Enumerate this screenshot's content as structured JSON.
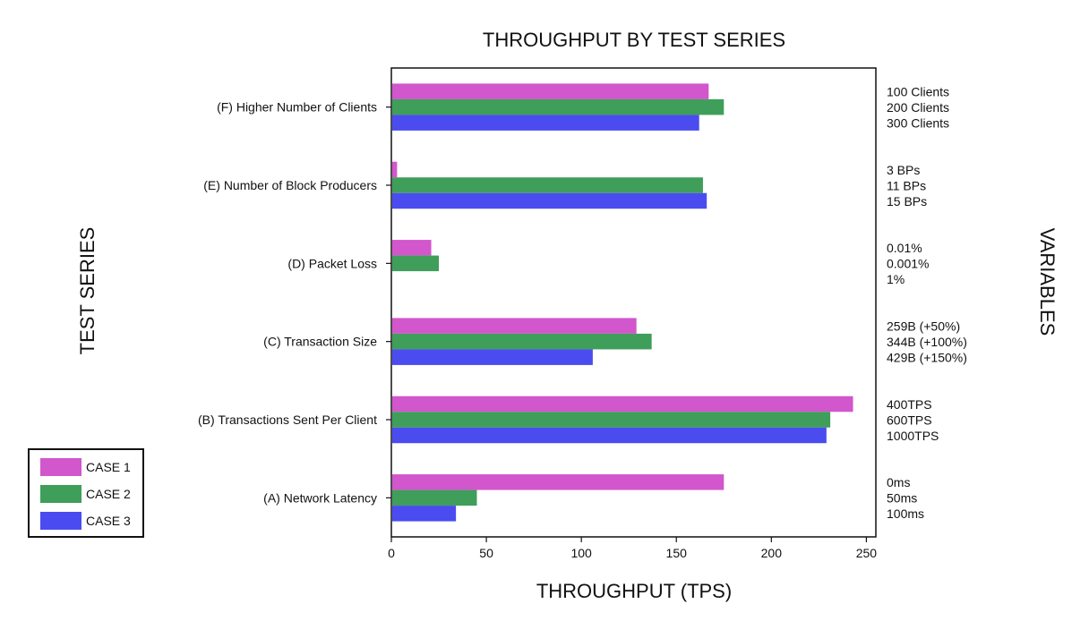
{
  "chart_data": {
    "type": "bar",
    "orientation": "horizontal",
    "title": "THROUGHPUT BY TEST SERIES",
    "xlabel": "THROUGHPUT (TPS)",
    "ylabel": "TEST SERIES",
    "right_label": "VARIABLES",
    "xlim": [
      0,
      255
    ],
    "xticks": [
      0,
      50,
      100,
      150,
      200,
      250
    ],
    "grid": false,
    "legend_position": "bottom-left",
    "categories": [
      "(A) Network Latency",
      "(B) Transactions Sent Per Client",
      "(C) Transaction Size",
      "(D) Packet Loss",
      "(E) Number of Block Producers",
      "(F) Higher Number of Clients"
    ],
    "variables": [
      [
        "0ms",
        "50ms",
        "100ms"
      ],
      [
        "400TPS",
        "600TPS",
        "1000TPS"
      ],
      [
        "259B (+50%)",
        "344B (+100%)",
        "429B (+150%)"
      ],
      [
        "0.01%",
        "0.001%",
        "1%"
      ],
      [
        "3 BPs",
        "11 BPs",
        "15 BPs"
      ],
      [
        "100 Clients",
        "200 Clients",
        "300 Clients"
      ]
    ],
    "series": [
      {
        "name": "CASE 1",
        "color": "#d256cc",
        "values": [
          175,
          243,
          129,
          21,
          3,
          167
        ]
      },
      {
        "name": "CASE 2",
        "color": "#3f9e5a",
        "values": [
          45,
          231,
          137,
          25,
          164,
          175
        ]
      },
      {
        "name": "CASE 3",
        "color": "#4a4cf0",
        "values": [
          34,
          229,
          106,
          0,
          166,
          162
        ]
      }
    ]
  }
}
